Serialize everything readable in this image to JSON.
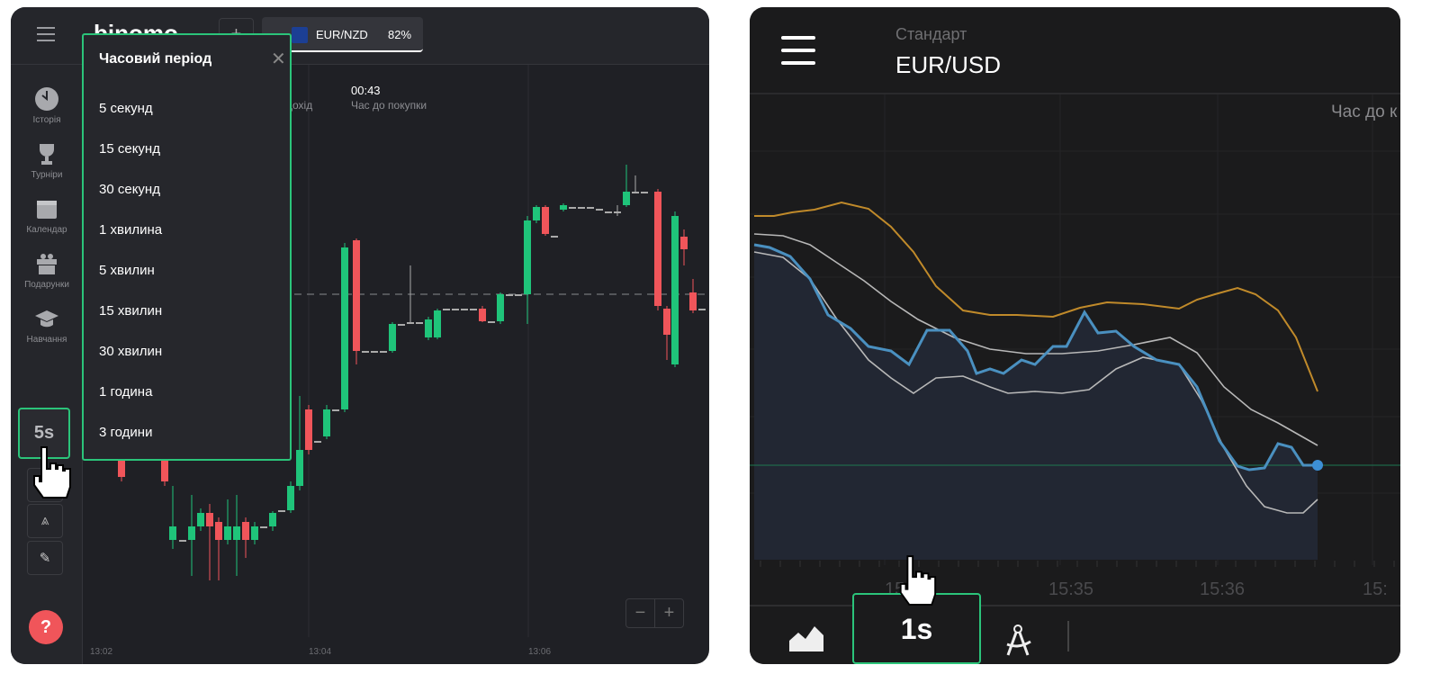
{
  "left_app": {
    "logo": "binomo",
    "add_tab_label": "+",
    "asset_tab": {
      "name": "EUR/NZD",
      "payout": "82%"
    },
    "stats": {
      "profit_label_fragment": "і дохід",
      "timer": "00:43",
      "timer_label": "Час до покупки"
    },
    "sidebar": [
      {
        "label": "Історія",
        "icon": "clock-icon"
      },
      {
        "label": "Турніри",
        "icon": "trophy-icon"
      },
      {
        "label": "Календар",
        "icon": "calendar-icon"
      },
      {
        "label": "Подарунки",
        "icon": "gift-icon"
      },
      {
        "label": "Навчання",
        "icon": "graduation-cap-icon"
      }
    ],
    "timeframe_button": "5s",
    "help_label": "?",
    "popup": {
      "title": "Часовий період",
      "options": [
        "5 секунд",
        "15 секунд",
        "30 секунд",
        "1 хвилина",
        "5 хвилин",
        "15 хвилин",
        "30 хвилин",
        "1 година",
        "3 години"
      ]
    },
    "time_axis": [
      "13:02",
      "13:04",
      "13:06"
    ],
    "zoom": {
      "minus": "−",
      "plus": "+"
    },
    "colors": {
      "up": "#1fc47a",
      "down": "#f0555a",
      "accent": "#2bc47a"
    }
  },
  "right_app": {
    "account_type": "Стандарт",
    "asset": "EUR/USD",
    "timer_label_fragment": "Час до к",
    "time_axis": [
      "15:",
      "15:35",
      "15:36",
      "15:"
    ],
    "timeframe_button": "1s",
    "colors": {
      "price": "#4a90c0",
      "ma_orange": "#c08a2a",
      "ma_grey": "#b8b8b8",
      "accent": "#2bc47a"
    }
  }
}
